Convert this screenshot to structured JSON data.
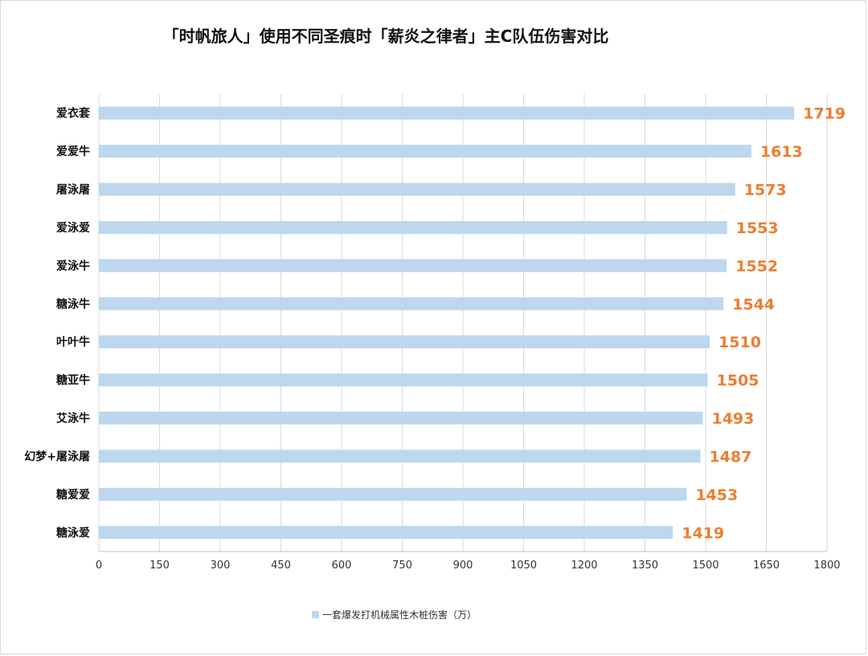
{
  "chart_data": {
    "type": "bar",
    "orientation": "horizontal",
    "title": "「时帆旅人」使用不同圣痕时「薪炎之律者」主C队伍伤害对比",
    "categories": [
      "爱衣套",
      "爱爱牛",
      "屠泳屠",
      "爱泳爱",
      "爱泳牛",
      "糖泳牛",
      "叶叶牛",
      "糖亚牛",
      "艾泳牛",
      "幻梦+屠泳屠",
      "糖爱爱",
      "糖泳爱"
    ],
    "series": [
      {
        "name": "一套爆发打机械属性木桩伤害（万）",
        "values": [
          1719,
          1613,
          1573,
          1553,
          1552,
          1544,
          1510,
          1505,
          1493,
          1487,
          1453,
          1419
        ]
      }
    ],
    "xlim": [
      0,
      1800
    ],
    "xticks": [
      0,
      150,
      300,
      450,
      600,
      750,
      900,
      1050,
      1200,
      1350,
      1500,
      1650,
      1800
    ],
    "grid": true,
    "legend_position": "bottom",
    "colors": {
      "bar": "#bdd7ee",
      "label": "#ed7d31",
      "grid": "#d9d9d9"
    }
  }
}
